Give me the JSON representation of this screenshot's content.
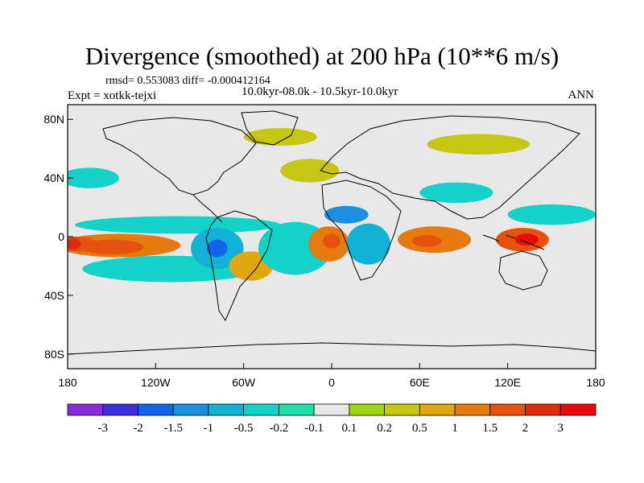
{
  "title": "Divergence (smoothed) at 200 hPa (10**6 m/s)",
  "stats": "rmsd= 0.553083 diff= -0.000412164",
  "expt_label": "Expt = xotkk-tejxi",
  "period": "10.0kyr-08.0k - 10.5kyr-10.0kyr",
  "season": "ANN",
  "y_axis": {
    "ticks": [
      {
        "label": "80N",
        "lat": 80
      },
      {
        "label": "40N",
        "lat": 40
      },
      {
        "label": "0",
        "lat": 0
      },
      {
        "label": "40S",
        "lat": -40
      },
      {
        "label": "80S",
        "lat": -80
      }
    ]
  },
  "x_axis": {
    "ticks": [
      {
        "label": "180",
        "lon": -180
      },
      {
        "label": "120W",
        "lon": -120
      },
      {
        "label": "60W",
        "lon": -60
      },
      {
        "label": "0",
        "lon": 0
      },
      {
        "label": "60E",
        "lon": 60
      },
      {
        "label": "120E",
        "lon": 120
      },
      {
        "label": "180",
        "lon": 180
      }
    ]
  },
  "colorbar": {
    "labels": [
      "-3",
      "-2",
      "-1.5",
      "-1",
      "-0.5",
      "-0.2",
      "-0.1",
      "0.1",
      "0.2",
      "0.5",
      "1",
      "1.5",
      "2",
      "3"
    ],
    "colors": [
      "#8a2be2",
      "#3a2fd6",
      "#1464e8",
      "#1c8fe0",
      "#12b2d6",
      "#14d2c8",
      "#22dea8",
      "#e8e8e8",
      "#9ed414",
      "#c6c614",
      "#e0a80e",
      "#e47a10",
      "#e4520e",
      "#dc2e0a",
      "#e80a0a"
    ]
  },
  "chart_data": {
    "type": "heatmap",
    "title": "Divergence (smoothed) at 200 hPa (10**6 m/s)",
    "lon_range": [
      -180,
      180
    ],
    "lat_range": [
      -90,
      90
    ],
    "features": [
      {
        "name": "central-pacific-div",
        "lon": -145,
        "lat": -6,
        "rx": 42,
        "ry": 8,
        "level": 1
      },
      {
        "name": "central-pacific-core",
        "lon": -150,
        "lat": -7,
        "rx": 22,
        "ry": 5,
        "level": 1.5
      },
      {
        "name": "dateline-west-div",
        "lon": -174,
        "lat": -5,
        "rx": 14,
        "ry": 5,
        "level": 1.5
      },
      {
        "name": "dateline-west-core",
        "lon": -176,
        "lat": -5,
        "rx": 5,
        "ry": 4,
        "level": 2
      },
      {
        "name": "east-pacific-conv",
        "lon": -105,
        "lat": 8,
        "rx": 70,
        "ry": 6,
        "level": -0.5
      },
      {
        "name": "south-pacific-conv",
        "lon": -110,
        "lat": -22,
        "rx": 60,
        "ry": 9,
        "level": -0.5
      },
      {
        "name": "amazon-conv",
        "lon": -78,
        "lat": -8,
        "rx": 18,
        "ry": 14,
        "level": -1
      },
      {
        "name": "amazon-core",
        "lon": -78,
        "lat": -8,
        "rx": 7,
        "ry": 6,
        "level": -2
      },
      {
        "name": "south-atlantic-div",
        "lon": -55,
        "lat": -20,
        "rx": 15,
        "ry": 10,
        "level": 0.5
      },
      {
        "name": "atlantic-conv",
        "lon": -25,
        "lat": -8,
        "rx": 25,
        "ry": 18,
        "level": -0.5
      },
      {
        "name": "africa-div",
        "lon": -2,
        "lat": -5,
        "rx": 14,
        "ry": 12,
        "level": 1
      },
      {
        "name": "africa-core",
        "lon": 0,
        "lat": -3,
        "rx": 6,
        "ry": 5,
        "level": 1.5
      },
      {
        "name": "central-africa-conv",
        "lon": 25,
        "lat": -5,
        "rx": 15,
        "ry": 14,
        "level": -1
      },
      {
        "name": "sahara-conv",
        "lon": 10,
        "lat": 15,
        "rx": 15,
        "ry": 6,
        "level": -1.5
      },
      {
        "name": "indian-ocean-div",
        "lon": 70,
        "lat": -2,
        "rx": 25,
        "ry": 9,
        "level": 1
      },
      {
        "name": "indian-ocean-core",
        "lon": 65,
        "lat": -3,
        "rx": 10,
        "ry": 4,
        "level": 1.5
      },
      {
        "name": "maritime-continent-div",
        "lon": 130,
        "lat": -2,
        "rx": 18,
        "ry": 8,
        "level": 1.5
      },
      {
        "name": "maritime-core",
        "lon": 133,
        "lat": -2,
        "rx": 8,
        "ry": 4,
        "level": 3
      },
      {
        "name": "west-pacific-conv",
        "lon": 150,
        "lat": 15,
        "rx": 30,
        "ry": 7,
        "level": -0.5
      },
      {
        "name": "tibet-conv",
        "lon": 85,
        "lat": 30,
        "rx": 25,
        "ry": 7,
        "level": -0.5
      },
      {
        "name": "north-atlantic-div",
        "lon": -15,
        "lat": 45,
        "rx": 20,
        "ry": 8,
        "level": 0.2
      },
      {
        "name": "greenland-div",
        "lon": -35,
        "lat": 68,
        "rx": 25,
        "ry": 6,
        "level": 0.2
      },
      {
        "name": "siberia-div",
        "lon": 100,
        "lat": 63,
        "rx": 35,
        "ry": 7,
        "level": 0.2
      },
      {
        "name": "north-pacific-conv",
        "lon": -165,
        "lat": 40,
        "rx": 20,
        "ry": 7,
        "level": -0.5
      }
    ]
  }
}
